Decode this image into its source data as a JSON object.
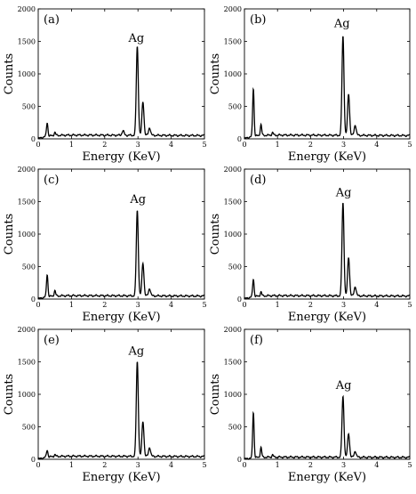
{
  "chart_data": [
    {
      "type": "line",
      "panel_label": "(a)",
      "xlabel": "Energy (KeV)",
      "ylabel": "Counts",
      "xlim": [
        0,
        5
      ],
      "ylim": [
        0,
        2000
      ],
      "xticks": [
        "0",
        "1",
        "2",
        "3",
        "4",
        "5"
      ],
      "yticks": [
        "0",
        "500",
        "1000",
        "1500",
        "2000"
      ],
      "annotation": {
        "text": "Ag",
        "x": 2.95,
        "y": 1490
      },
      "background": 60,
      "peaks": [
        {
          "energy": 0.27,
          "counts": 270
        },
        {
          "energy": 0.5,
          "counts": 110
        },
        {
          "energy": 2.55,
          "counts": 130
        },
        {
          "energy": 2.98,
          "counts": 1430
        },
        {
          "energy": 3.15,
          "counts": 580
        },
        {
          "energy": 3.35,
          "counts": 180
        }
      ]
    },
    {
      "type": "line",
      "panel_label": "(b)",
      "xlabel": "Energy (KeV)",
      "ylabel": "Counts",
      "xlim": [
        0,
        5
      ],
      "ylim": [
        0,
        2000
      ],
      "xticks": [
        "0",
        "1",
        "2",
        "3",
        "4",
        "5"
      ],
      "yticks": [
        "0",
        "500",
        "1000",
        "1500",
        "2000"
      ],
      "annotation": {
        "text": "Ag",
        "x": 2.95,
        "y": 1720
      },
      "background": 60,
      "peaks": [
        {
          "energy": 0.27,
          "counts": 800
        },
        {
          "energy": 0.5,
          "counts": 230
        },
        {
          "energy": 0.85,
          "counts": 100
        },
        {
          "energy": 2.98,
          "counts": 1590
        },
        {
          "energy": 3.15,
          "counts": 700
        },
        {
          "energy": 3.35,
          "counts": 220
        }
      ]
    },
    {
      "type": "line",
      "panel_label": "(c)",
      "xlabel": "Energy (KeV)",
      "ylabel": "Counts",
      "xlim": [
        0,
        5
      ],
      "ylim": [
        0,
        2000
      ],
      "xticks": [
        "0",
        "1",
        "2",
        "3",
        "4",
        "5"
      ],
      "yticks": [
        "0",
        "500",
        "1000",
        "1500",
        "2000"
      ],
      "annotation": {
        "text": "Ag",
        "x": 3.0,
        "y": 1480
      },
      "background": 55,
      "peaks": [
        {
          "energy": 0.27,
          "counts": 400
        },
        {
          "energy": 0.5,
          "counts": 140
        },
        {
          "energy": 2.98,
          "counts": 1370
        },
        {
          "energy": 3.15,
          "counts": 560
        },
        {
          "energy": 3.35,
          "counts": 170
        }
      ]
    },
    {
      "type": "line",
      "panel_label": "(d)",
      "xlabel": "Energy (KeV)",
      "ylabel": "Counts",
      "xlim": [
        0,
        5
      ],
      "ylim": [
        0,
        2000
      ],
      "xticks": [
        "0",
        "1",
        "2",
        "3",
        "4",
        "5"
      ],
      "yticks": [
        "0",
        "500",
        "1000",
        "1500",
        "2000"
      ],
      "annotation": {
        "text": "Ag",
        "x": 3.0,
        "y": 1580
      },
      "background": 55,
      "peaks": [
        {
          "energy": 0.27,
          "counts": 330
        },
        {
          "energy": 0.5,
          "counts": 120
        },
        {
          "energy": 2.98,
          "counts": 1490
        },
        {
          "energy": 3.15,
          "counts": 650
        },
        {
          "energy": 3.35,
          "counts": 200
        }
      ]
    },
    {
      "type": "line",
      "panel_label": "(e)",
      "xlabel": "Energy (KeV)",
      "ylabel": "Counts",
      "xlim": [
        0,
        5
      ],
      "ylim": [
        0,
        2000
      ],
      "xticks": [
        "0",
        "1",
        "2",
        "3",
        "4",
        "5"
      ],
      "yticks": [
        "0",
        "500",
        "1000",
        "1500",
        "2000"
      ],
      "annotation": {
        "text": "Ag",
        "x": 2.95,
        "y": 1610
      },
      "background": 50,
      "peaks": [
        {
          "energy": 0.27,
          "counts": 160
        },
        {
          "energy": 0.5,
          "counts": 80
        },
        {
          "energy": 2.98,
          "counts": 1510
        },
        {
          "energy": 3.15,
          "counts": 590
        },
        {
          "energy": 3.35,
          "counts": 190
        }
      ]
    },
    {
      "type": "line",
      "panel_label": "(f)",
      "xlabel": "Energy (KeV)",
      "ylabel": "Counts",
      "xlim": [
        0,
        5
      ],
      "ylim": [
        0,
        2000
      ],
      "xticks": [
        "0",
        "1",
        "2",
        "3",
        "4",
        "5"
      ],
      "yticks": [
        "0",
        "500",
        "1000",
        "1500",
        "2000"
      ],
      "annotation": {
        "text": "Ag",
        "x": 3.0,
        "y": 1080
      },
      "background": 35,
      "peaks": [
        {
          "energy": 0.27,
          "counts": 740
        },
        {
          "energy": 0.5,
          "counts": 190
        },
        {
          "energy": 0.85,
          "counts": 70
        },
        {
          "energy": 2.98,
          "counts": 970
        },
        {
          "energy": 3.15,
          "counts": 400
        },
        {
          "energy": 3.35,
          "counts": 130
        }
      ]
    }
  ]
}
